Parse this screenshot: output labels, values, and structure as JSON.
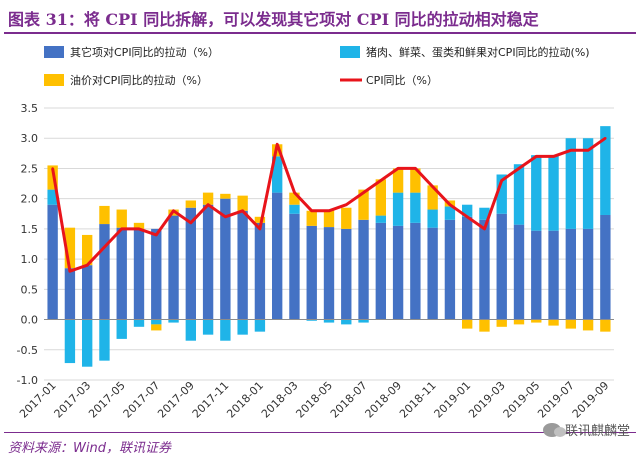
{
  "title": "图表 31：将 CPI 同比拆解，可以发现其它项对 CPI 同比的拉动相对稳定",
  "source": "资料来源：Wind，联讯证券",
  "watermark": "联讯麒麟堂",
  "colors": {
    "other": "#4472C4",
    "pork": "#1FB4E8",
    "oil": "#FFC000",
    "cpi": "#E8141B",
    "title": "#7B2C8E"
  },
  "chart_data": {
    "type": "bar",
    "stacked": true,
    "title": "",
    "xlabel": "",
    "ylabel": "",
    "ylim": [
      -1.0,
      3.5
    ],
    "yticks": [
      "3.5",
      "3.0",
      "2.5",
      "2.0",
      "1.5",
      "1.0",
      "0.5",
      "0.0",
      "-0.5",
      "-1.0"
    ],
    "legend_position": "top",
    "categories": [
      "2017-01",
      "2017-02",
      "2017-03",
      "2017-04",
      "2017-05",
      "2017-06",
      "2017-07",
      "2017-08",
      "2017-09",
      "2017-10",
      "2017-11",
      "2017-12",
      "2018-01",
      "2018-02",
      "2018-03",
      "2018-04",
      "2018-05",
      "2018-06",
      "2018-07",
      "2018-08",
      "2018-09",
      "2018-10",
      "2018-11",
      "2018-12",
      "2019-01",
      "2019-02",
      "2019-03",
      "2019-04",
      "2019-05",
      "2019-06",
      "2019-07",
      "2019-08",
      "2019-09"
    ],
    "xtick_labels": [
      "2017-01",
      "2017-03",
      "2017-05",
      "2017-07",
      "2017-09",
      "2017-11",
      "2018-01",
      "2018-03",
      "2018-05",
      "2018-07",
      "2018-09",
      "2018-11",
      "2019-01",
      "2019-03",
      "2019-05",
      "2019-07",
      "2019-09"
    ],
    "series": [
      {
        "name": "其它项对CPI同比的拉动（%）",
        "kind": "bar",
        "values": [
          1.9,
          0.85,
          0.9,
          1.58,
          1.52,
          1.5,
          1.5,
          1.72,
          1.85,
          1.9,
          2.0,
          1.8,
          1.6,
          2.1,
          1.75,
          1.55,
          1.53,
          1.5,
          1.65,
          1.6,
          1.55,
          1.6,
          1.52,
          1.65,
          1.7,
          1.65,
          1.75,
          1.57,
          1.47,
          1.47,
          1.5,
          1.5,
          1.73
        ]
      },
      {
        "name": "猪肉、鲜菜、蛋类和鲜果对CPI同比的拉动(%)",
        "kind": "bar",
        "values": [
          0.25,
          -0.72,
          -0.78,
          -0.68,
          -0.32,
          -0.12,
          -0.08,
          -0.05,
          -0.35,
          -0.25,
          -0.35,
          -0.25,
          -0.2,
          0.6,
          0.15,
          -0.02,
          -0.05,
          -0.08,
          -0.05,
          0.12,
          0.55,
          0.5,
          0.3,
          0.22,
          0.2,
          0.2,
          0.65,
          1.0,
          1.25,
          1.25,
          1.5,
          1.5,
          1.47
        ]
      },
      {
        "name": "油价对CPI同比的拉动（%）",
        "kind": "bar",
        "values": [
          0.4,
          0.67,
          0.5,
          0.3,
          0.3,
          0.1,
          -0.1,
          0.1,
          0.12,
          0.2,
          0.08,
          0.25,
          0.1,
          0.2,
          0.2,
          0.25,
          0.28,
          0.35,
          0.5,
          0.6,
          0.4,
          0.4,
          0.4,
          0.1,
          -0.15,
          -0.2,
          -0.12,
          -0.08,
          -0.05,
          -0.1,
          -0.15,
          -0.18,
          -0.2
        ]
      },
      {
        "name": "CPI同比（%）",
        "kind": "line",
        "values": [
          2.5,
          0.8,
          0.9,
          1.2,
          1.5,
          1.5,
          1.4,
          1.8,
          1.6,
          1.9,
          1.7,
          1.8,
          1.5,
          2.9,
          2.1,
          1.8,
          1.8,
          1.9,
          2.1,
          2.3,
          2.5,
          2.5,
          2.2,
          1.9,
          1.7,
          1.5,
          2.3,
          2.5,
          2.7,
          2.7,
          2.8,
          2.8,
          3.0
        ]
      }
    ]
  }
}
